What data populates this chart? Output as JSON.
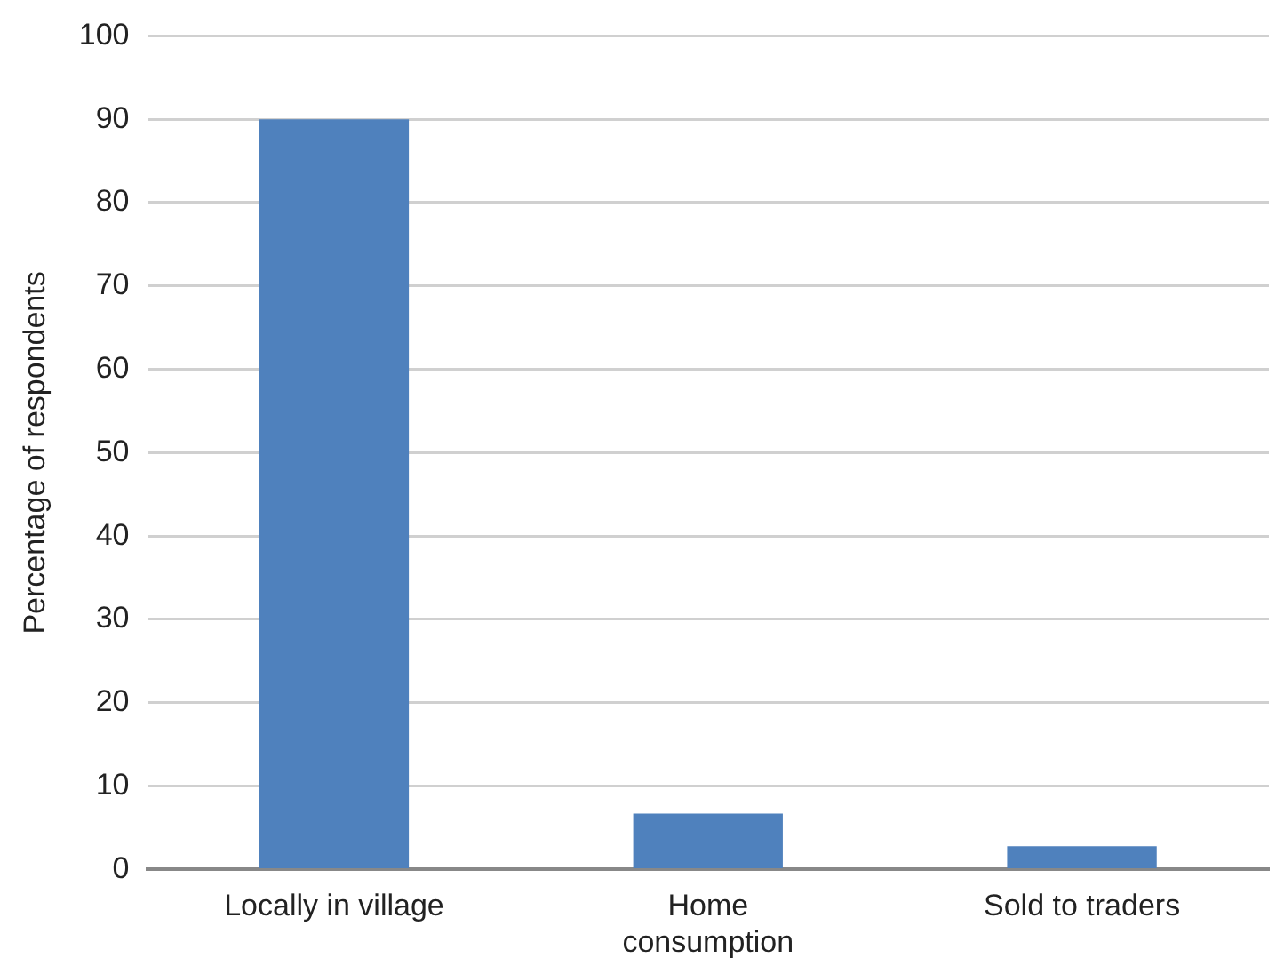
{
  "chart_data": {
    "type": "bar",
    "ylabel": "Percentage of respondents",
    "categories": [
      [
        "Locally in village"
      ],
      [
        "Home",
        "consumption"
      ],
      [
        "Sold to traders"
      ]
    ],
    "values": [
      90,
      6.7,
      2.8
    ],
    "color": "#4f81bd",
    "ylim": [
      0,
      100
    ],
    "yticks": [
      0,
      10,
      20,
      30,
      40,
      50,
      60,
      70,
      80,
      90,
      100
    ],
    "grid": "y",
    "legend": false
  }
}
